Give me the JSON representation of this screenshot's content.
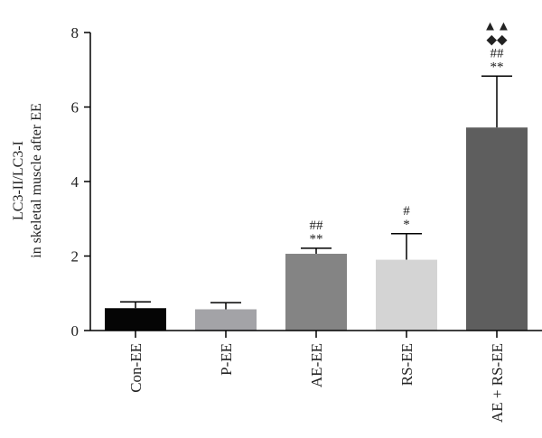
{
  "chart_data": {
    "type": "bar",
    "ylabel": "LC3-II/LC3-I",
    "ylabel2": "in skeletal muscle after EE",
    "ylim": [
      0,
      8
    ],
    "yticks": [
      0,
      2,
      4,
      6,
      8
    ],
    "categories": [
      "Con-EE",
      "P-EE",
      "AE-EE",
      "RS-EE",
      "AE + RS-EE"
    ],
    "values": [
      0.6,
      0.57,
      2.06,
      1.9,
      5.45
    ],
    "errors": [
      0.17,
      0.18,
      0.15,
      0.7,
      1.38
    ],
    "colors": [
      "#050505",
      "#a3a3a7",
      "#848484",
      "#d4d4d4",
      "#5e5e5e"
    ],
    "annotations": [
      [],
      [],
      [
        "**",
        "##"
      ],
      [
        "*",
        "#"
      ],
      [
        "**",
        "##",
        "◆◆",
        "▲▲"
      ]
    ]
  }
}
